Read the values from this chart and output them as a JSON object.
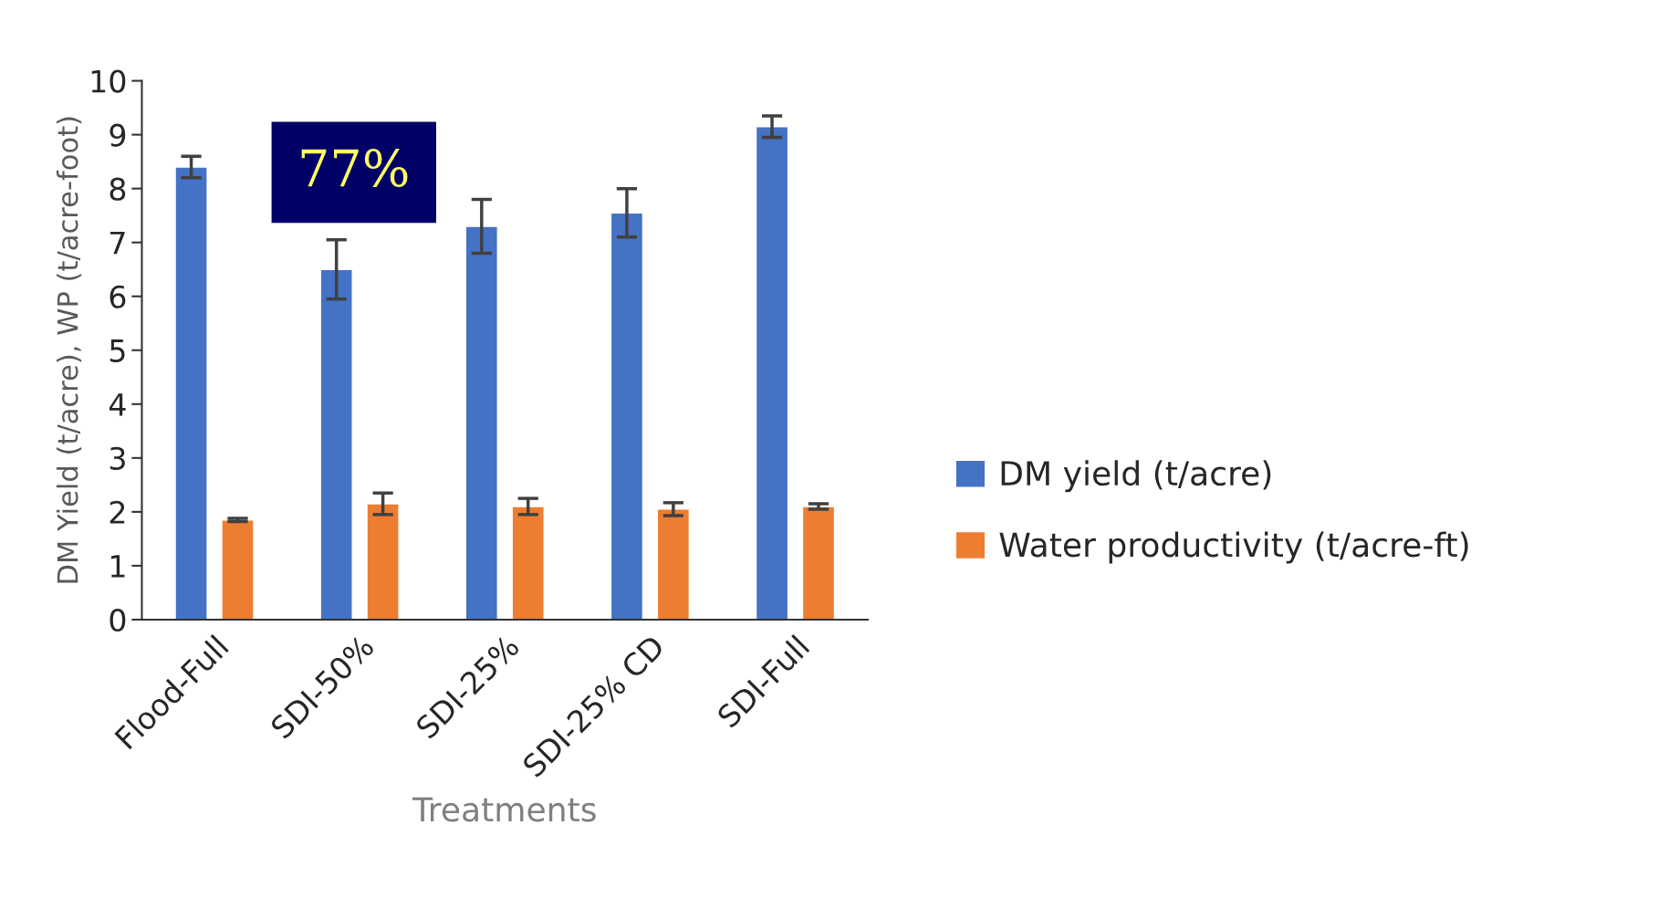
{
  "chart_data": {
    "type": "bar",
    "xlabel": "Treatments",
    "ylabel": "DM Yield (t/acre), WP (t/acre-foot)",
    "categories": [
      "Flood-Full",
      "SDI-50%",
      "SDI-25%",
      "SDI-25% CD",
      "SDI-Full"
    ],
    "series": [
      {
        "name": "DM yield (t/acre)",
        "color": "#4472c4",
        "values": [
          8.4,
          6.5,
          7.3,
          7.55,
          9.15
        ],
        "errors": [
          0.2,
          0.55,
          0.5,
          0.45,
          0.2
        ]
      },
      {
        "name": "Water productivity (t/acre-ft)",
        "color": "#ed7d31",
        "values": [
          1.85,
          2.15,
          2.1,
          2.05,
          2.1
        ],
        "errors": [
          0.03,
          0.2,
          0.15,
          0.12,
          0.05
        ]
      }
    ],
    "ylim": [
      0,
      10
    ],
    "yticks": [
      0,
      1,
      2,
      3,
      4,
      5,
      6,
      7,
      8,
      9,
      10
    ],
    "annotations": [
      "77%"
    ],
    "grid": false,
    "legend": "right"
  }
}
